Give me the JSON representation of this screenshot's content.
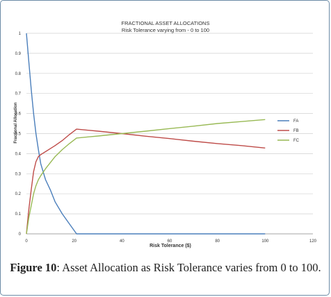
{
  "chart_data": {
    "type": "line",
    "title": "FRACTIONAL ASSET ALLOCATIONS",
    "subtitle": "Risk Tolerance varying from - 0 to 100",
    "xlabel": "Risk Tolerance ($)",
    "ylabel": "Fractional Allocation",
    "xlim": [
      0,
      120
    ],
    "ylim": [
      0,
      1
    ],
    "x_ticks": [
      "0",
      "20",
      "40",
      "60",
      "80",
      "100",
      "120"
    ],
    "y_ticks": [
      "0",
      "0.1",
      "0.2",
      "0.3",
      "0.4",
      "0.5",
      "0.6",
      "0.7",
      "0.8",
      "0.9",
      "1"
    ],
    "grid": true,
    "legend_position": "right",
    "series": [
      {
        "name": "FA",
        "color": "#4a7ebb",
        "x": [
          0,
          1,
          2,
          3,
          4,
          5,
          6,
          8,
          10,
          12,
          15,
          18,
          21,
          30,
          40,
          50,
          60,
          70,
          80,
          90,
          100
        ],
        "y": [
          1.0,
          0.86,
          0.72,
          0.6,
          0.5,
          0.42,
          0.35,
          0.27,
          0.22,
          0.16,
          0.1,
          0.05,
          0.0,
          0.0,
          0.0,
          0.0,
          0.0,
          0.0,
          0.0,
          0.0,
          0.0
        ]
      },
      {
        "name": "FB",
        "color": "#be4b48",
        "x": [
          0,
          1,
          2,
          3,
          4,
          5,
          6,
          8,
          10,
          12,
          15,
          18,
          21,
          30,
          40,
          50,
          60,
          70,
          80,
          90,
          100
        ],
        "y": [
          0.0,
          0.12,
          0.22,
          0.31,
          0.36,
          0.385,
          0.395,
          0.41,
          0.425,
          0.44,
          0.465,
          0.495,
          0.522,
          0.512,
          0.5,
          0.487,
          0.475,
          0.462,
          0.45,
          0.44,
          0.428
        ]
      },
      {
        "name": "FC",
        "color": "#98b954",
        "x": [
          0,
          1,
          2,
          3,
          4,
          5,
          6,
          8,
          10,
          12,
          15,
          18,
          21,
          30,
          40,
          50,
          60,
          70,
          80,
          90,
          100
        ],
        "y": [
          0.0,
          0.08,
          0.14,
          0.2,
          0.24,
          0.27,
          0.29,
          0.325,
          0.355,
          0.385,
          0.42,
          0.45,
          0.478,
          0.488,
          0.5,
          0.512,
          0.525,
          0.537,
          0.55,
          0.56,
          0.57
        ]
      }
    ]
  },
  "caption": {
    "label": "Figure 10",
    "text": ": Asset Allocation as Risk Tolerance varies from 0 to 100."
  }
}
